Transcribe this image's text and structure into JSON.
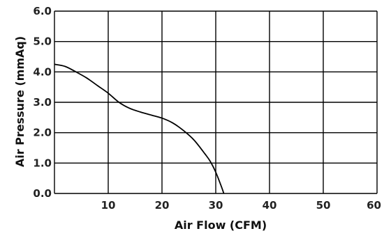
{
  "chart_data": {
    "type": "line",
    "title": "",
    "xlabel": "Air Flow (CFM)",
    "ylabel": "Air Pressure (mmAq)",
    "xlim": [
      0,
      60
    ],
    "ylim": [
      0,
      6
    ],
    "x_ticks": [
      10,
      20,
      30,
      40,
      50,
      60
    ],
    "x_tick_labels": [
      "10",
      "20",
      "30",
      "40",
      "50",
      "60"
    ],
    "y_ticks": [
      0,
      1,
      2,
      3,
      4,
      5,
      6
    ],
    "y_tick_labels": [
      "0.0",
      "1.0",
      "2.0",
      "3.0",
      "4.0",
      "5.0",
      "6.0"
    ],
    "grid": true,
    "legend": "none",
    "line_color": "#000000",
    "series": [
      {
        "x": [
          0,
          2,
          4,
          6,
          8,
          10,
          12,
          14,
          16,
          18,
          20,
          22,
          24,
          26,
          28,
          29,
          30,
          31,
          31.5
        ],
        "y": [
          4.25,
          4.18,
          4.0,
          3.8,
          3.55,
          3.3,
          3.0,
          2.8,
          2.68,
          2.58,
          2.48,
          2.32,
          2.07,
          1.75,
          1.3,
          1.05,
          0.7,
          0.25,
          0.0
        ]
      }
    ]
  }
}
